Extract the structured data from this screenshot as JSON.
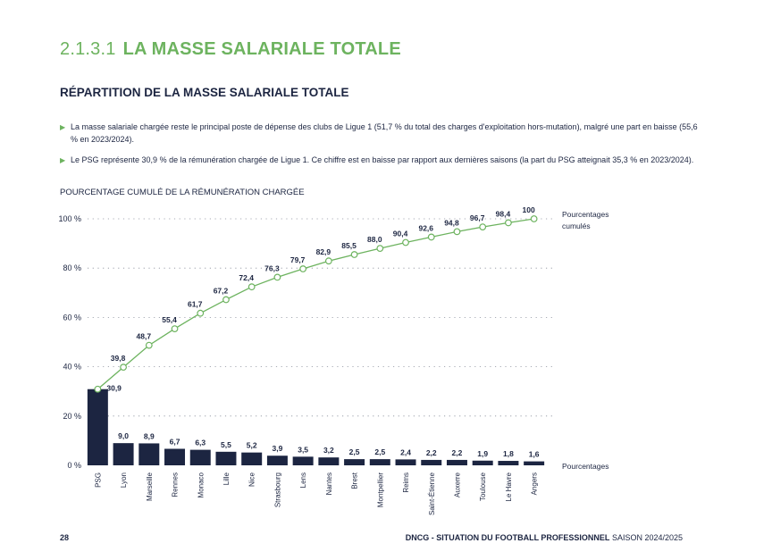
{
  "header": {
    "section_number": "2.1.3.1",
    "section_title": "LA MASSE SALARIALE TOTALE",
    "subtitle": "RÉPARTITION DE LA MASSE SALARIALE TOTALE"
  },
  "bullets": [
    "La masse salariale chargée reste le principal poste de dépense des clubs de Ligue 1 (51,7 % du total des charges d'exploitation hors-mutation), malgré une part en baisse (55,6 % en 2023/2024).",
    "Le PSG représente 30,9 % de la rémunération chargée de Ligue 1. Ce chiffre est en baisse par rapport aux dernières saisons (la part du PSG atteignait 35,3 % en 2023/2024)."
  ],
  "chart_title": "POURCENTAGE CUMULÉ DE LA RÉMUNÉRATION CHARGÉE",
  "chart_data": {
    "type": "bar",
    "title": "POURCENTAGE CUMULÉ DE LA RÉMUNÉRATION CHARGÉE",
    "categories": [
      "PSG",
      "Lyon",
      "Marseille",
      "Rennes",
      "Monaco",
      "Lille",
      "Nice",
      "Strasbourg",
      "Lens",
      "Nantes",
      "Brest",
      "Montpellier",
      "Reims",
      "Saint-Étienne",
      "Auxerre",
      "Toulouse",
      "Le Havre",
      "Angers"
    ],
    "series": [
      {
        "name": "Pourcentages",
        "type": "bar",
        "values": [
          30.9,
          9.0,
          8.9,
          6.7,
          6.3,
          5.5,
          5.2,
          3.9,
          3.5,
          3.2,
          2.5,
          2.5,
          2.4,
          2.2,
          2.2,
          1.9,
          1.8,
          1.6
        ],
        "labels": [
          "30,9",
          "9,0",
          "8,9",
          "6,7",
          "6,3",
          "5,5",
          "5,2",
          "3,9",
          "3,5",
          "3,2",
          "2,5",
          "2,5",
          "2,4",
          "2,2",
          "2,2",
          "1,9",
          "1,8",
          "1,6"
        ],
        "color": "#1c2541"
      },
      {
        "name": "Pourcentages cumulés",
        "type": "line",
        "values": [
          30.9,
          39.8,
          48.7,
          55.4,
          61.7,
          67.2,
          72.4,
          76.3,
          79.7,
          82.9,
          85.5,
          88.0,
          90.4,
          92.6,
          94.8,
          96.7,
          98.4,
          100
        ],
        "labels": [
          "30,9",
          "39,8",
          "48,7",
          "55,4",
          "61,7",
          "67,2",
          "72,4",
          "76,3",
          "79,7",
          "82,9",
          "85,5",
          "88,0",
          "90,4",
          "92,6",
          "94,8",
          "96,7",
          "98,4",
          "100"
        ],
        "color": "#6db35f"
      }
    ],
    "yticks": [
      0,
      20,
      40,
      60,
      80,
      100
    ],
    "ytick_labels": [
      "0 %",
      "20 %",
      "40 %",
      "60 %",
      "80 %",
      "100 %"
    ],
    "ylim": [
      0,
      100
    ],
    "grid": "dotted horizontal",
    "legend_placement": "right",
    "legend": {
      "line_label": [
        "Pourcentages",
        "cumulés"
      ],
      "bar_label": "Pourcentages"
    }
  },
  "footer": {
    "page_number": "28",
    "publication": "DNCG - SITUATION DU FOOTBALL PROFESSIONNEL",
    "season": "SAISON 2024/2025"
  },
  "colors": {
    "accent_green": "#6db35f",
    "navy": "#1c2541"
  }
}
